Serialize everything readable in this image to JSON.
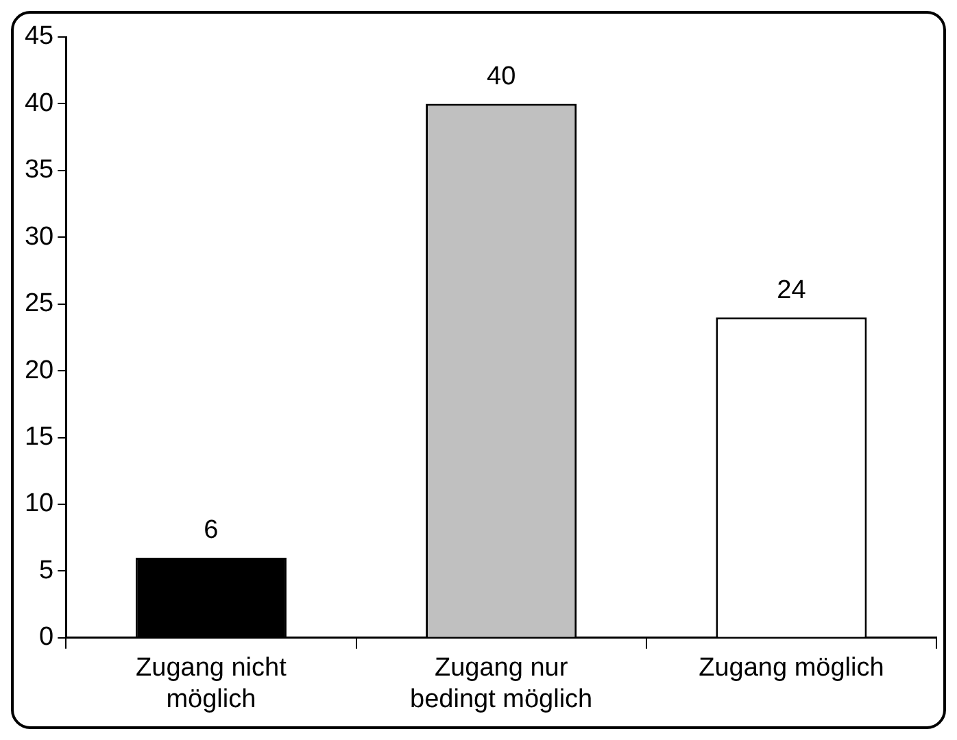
{
  "chart_data": {
    "type": "bar",
    "categories": [
      "Zugang nicht möglich",
      "Zugang nur bedingt möglich",
      "Zugang möglich"
    ],
    "values": [
      6,
      40,
      24
    ],
    "colors": [
      "#000000",
      "#c0c0c0",
      "#ffffff"
    ],
    "ylim": [
      0,
      45
    ],
    "yticks": [
      0,
      5,
      10,
      15,
      20,
      25,
      30,
      35,
      40,
      45
    ],
    "grid": false,
    "legend": false,
    "data_labels": true
  }
}
